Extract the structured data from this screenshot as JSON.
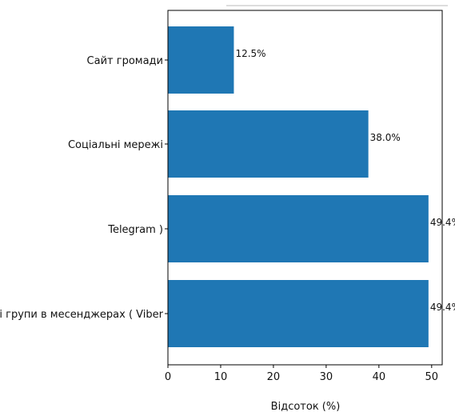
{
  "chart_data": {
    "type": "bar",
    "orientation": "horizontal",
    "categories": [
      "Сайт громади",
      "Соціальні мережі",
      "Telegram )",
      "Місцеві групи в месенджерах ( Viber"
    ],
    "values": [
      12.5,
      38.0,
      49.4,
      49.4
    ],
    "data_labels": [
      "12.5%",
      "38.0%",
      "49.4%",
      "49.4%"
    ],
    "xlabel": "Відсоток (%)",
    "ylabel": "",
    "title": "",
    "xlim": [
      0,
      52
    ],
    "xticks": [
      0,
      10,
      20,
      30,
      40,
      50
    ],
    "grid": false,
    "bar_color": "#1f77b4"
  }
}
